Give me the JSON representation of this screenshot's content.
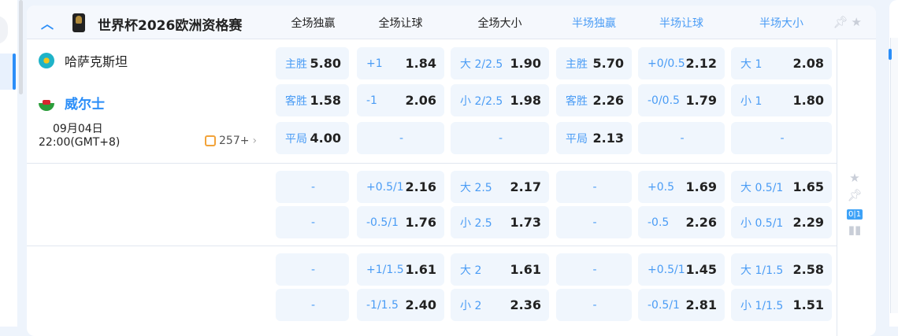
{
  "league": {
    "name": "世界杯2026欧洲资格赛",
    "collapse_icon": "chevron-up-icon",
    "logo": "world-cup-trophy"
  },
  "columns": [
    "全场独赢",
    "全场让球",
    "全场大小",
    "半场独赢",
    "半场让球",
    "半场大小"
  ],
  "header_icons": [
    "pin-icon",
    "star-icon"
  ],
  "match": {
    "home": "哈萨克斯坦",
    "away": "威尔士",
    "date": "09月04日",
    "time": "22:00(GMT+8)",
    "more_count": "257+"
  },
  "odds_rows": [
    [
      {
        "l": "主胜",
        "v": "5.80"
      },
      {
        "l": "+1",
        "v": "1.84"
      },
      {
        "l": "大 2/2.5",
        "v": "1.90"
      },
      {
        "l": "主胜",
        "v": "5.70"
      },
      {
        "l": "+0/0.5",
        "v": "2.12"
      },
      {
        "l": "大 1",
        "v": "2.08"
      }
    ],
    [
      {
        "l": "客胜",
        "v": "1.58"
      },
      {
        "l": "-1",
        "v": "2.06"
      },
      {
        "l": "小 2/2.5",
        "v": "1.98"
      },
      {
        "l": "客胜",
        "v": "2.26"
      },
      {
        "l": "-0/0.5",
        "v": "1.79"
      },
      {
        "l": "小 1",
        "v": "1.80"
      }
    ],
    [
      {
        "l": "平局",
        "v": "4.00"
      },
      {
        "l": "-",
        "v": ""
      },
      {
        "l": "-",
        "v": ""
      },
      {
        "l": "平局",
        "v": "2.13"
      },
      {
        "l": "-",
        "v": ""
      },
      {
        "l": "-",
        "v": ""
      }
    ],
    [
      {
        "l": "-",
        "v": ""
      },
      {
        "l": "+0.5/1",
        "v": "2.16"
      },
      {
        "l": "大 2.5",
        "v": "2.17"
      },
      {
        "l": "-",
        "v": ""
      },
      {
        "l": "+0.5",
        "v": "1.69"
      },
      {
        "l": "大 0.5/1",
        "v": "1.65"
      }
    ],
    [
      {
        "l": "-",
        "v": ""
      },
      {
        "l": "-0.5/1",
        "v": "1.76"
      },
      {
        "l": "小 2.5",
        "v": "1.73"
      },
      {
        "l": "-",
        "v": ""
      },
      {
        "l": "-0.5",
        "v": "2.26"
      },
      {
        "l": "小 0.5/1",
        "v": "2.29"
      }
    ],
    [
      {
        "l": "-",
        "v": ""
      },
      {
        "l": "+1/1.5",
        "v": "1.61"
      },
      {
        "l": "大 2",
        "v": "1.61"
      },
      {
        "l": "-",
        "v": ""
      },
      {
        "l": "+0.5/1",
        "v": "1.45"
      },
      {
        "l": "大 1/1.5",
        "v": "2.58"
      }
    ],
    [
      {
        "l": "-",
        "v": ""
      },
      {
        "l": "-1/1.5",
        "v": "2.40"
      },
      {
        "l": "小 2",
        "v": "2.36"
      },
      {
        "l": "-",
        "v": ""
      },
      {
        "l": "-0.5/1",
        "v": "2.81"
      },
      {
        "l": "小 1/1.5",
        "v": "1.51"
      }
    ]
  ],
  "side_icons": {
    "score": "0|1",
    "icons": [
      "star-icon",
      "pin-icon",
      "scoreboard-icon",
      "stats-icon"
    ]
  }
}
